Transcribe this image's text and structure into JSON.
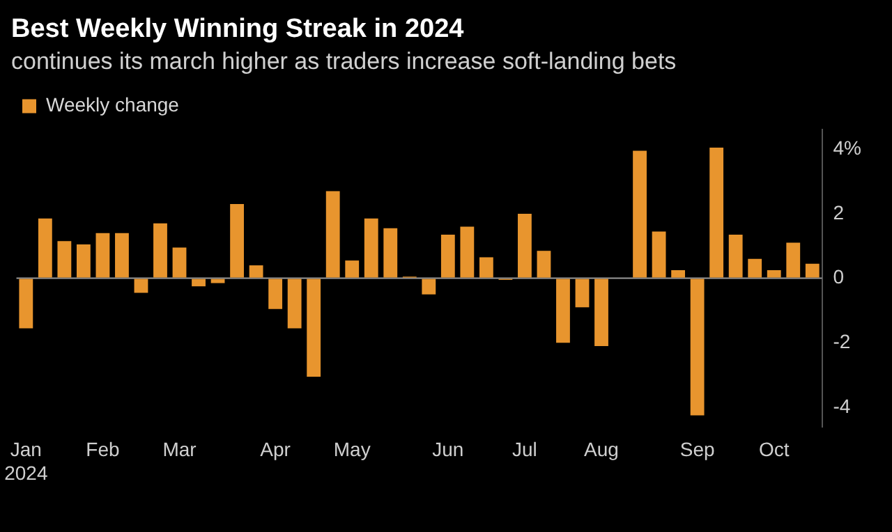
{
  "chart_data": {
    "type": "bar",
    "title": "Best Weekly Winning Streak in 2024",
    "subtitle": "continues its march higher as traders increase soft-landing bets",
    "categories": [
      "Jan 2024",
      null,
      null,
      null,
      "Feb",
      null,
      null,
      null,
      "Mar",
      null,
      null,
      null,
      null,
      "Apr",
      null,
      null,
      null,
      "May",
      null,
      null,
      null,
      null,
      "Jun",
      null,
      null,
      null,
      "Jul",
      null,
      null,
      null,
      "Aug",
      null,
      null,
      null,
      null,
      "Sep",
      null,
      null,
      null,
      "Oct",
      null,
      null
    ],
    "series": [
      {
        "name": "Weekly change",
        "color": "#e8952e",
        "values": [
          -1.55,
          1.85,
          1.15,
          1.05,
          1.4,
          1.4,
          -0.45,
          1.7,
          0.95,
          -0.25,
          -0.15,
          2.3,
          0.4,
          -0.95,
          -1.55,
          -3.05,
          2.7,
          0.55,
          1.85,
          1.55,
          0.05,
          -0.5,
          1.35,
          1.6,
          0.65,
          -0.05,
          2.0,
          0.85,
          -2.0,
          -0.9,
          -2.1,
          0,
          3.95,
          1.45,
          0.25,
          -4.25,
          4.05,
          1.35,
          0.6,
          0.25,
          1.1,
          0.45
        ]
      }
    ],
    "ylim": [
      -4.6,
      4.6
    ],
    "yticks": [
      {
        "value": 4,
        "label": "4%"
      },
      2,
      0,
      -2,
      -4
    ],
    "grid": false,
    "legend": "top left",
    "ref_lines": [
      {
        "axis": "y",
        "value": 0,
        "color": "#9a9a9a"
      }
    ]
  }
}
